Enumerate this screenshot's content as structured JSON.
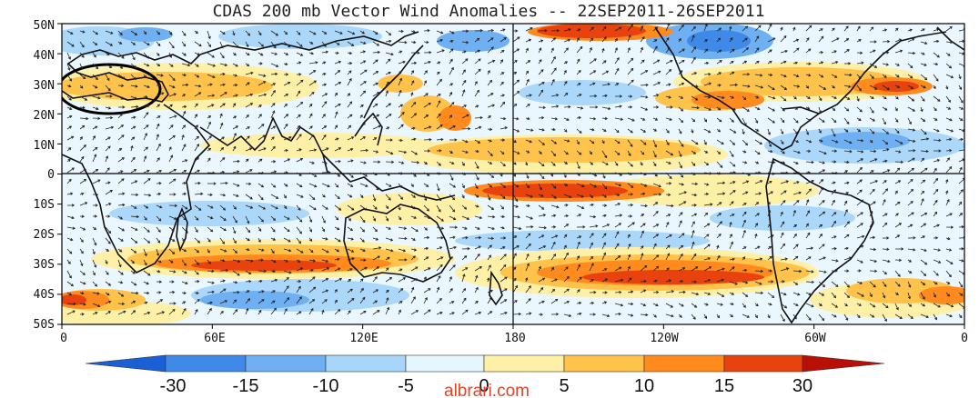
{
  "title": "CDAS 200 mb Vector Wind Anomalies -- 22SEP2011-26SEP2011",
  "lat_labels": [
    "50N",
    "40N",
    "30N",
    "20N",
    "10N",
    "0",
    "10S",
    "20S",
    "30S",
    "40S",
    "50S"
  ],
  "lon_labels": [
    "0",
    "60E",
    "120E",
    "180",
    "120W",
    "60W",
    "0"
  ],
  "colorbar": {
    "labels": [
      "-30",
      "-15",
      "-10",
      "-5",
      "0",
      "5",
      "10",
      "15",
      "30"
    ],
    "colors": [
      "#1a5fd6",
      "#3f8ae8",
      "#6fb0f2",
      "#a8d6fa",
      "#e6f6ff",
      "#fff0a8",
      "#ffc24a",
      "#ff8a1e",
      "#e8420f",
      "#b81006"
    ]
  },
  "watermark": "albrari.com",
  "colors": {
    "map_border": "#000000",
    "coastline": "#111111",
    "annotation_circle": "#000000"
  }
}
